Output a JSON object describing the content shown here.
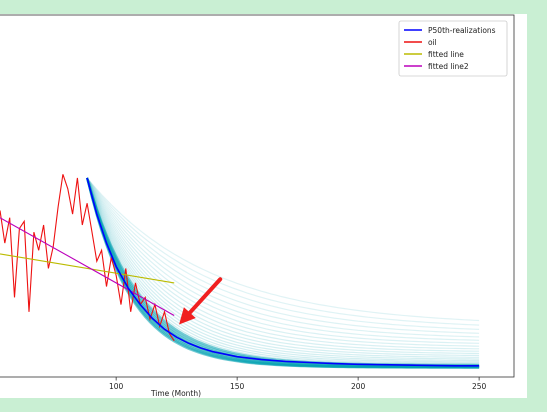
{
  "chart_data": {
    "type": "line",
    "xlabel": "Time (Month)",
    "ylabel": "",
    "xlim": [
      52,
      264
    ],
    "ylim": [
      0,
      1
    ],
    "x_ticks": [
      100,
      150,
      200,
      250
    ],
    "grid": false,
    "legend_position": "top-right",
    "series": [
      {
        "name": "P50th-realizations",
        "color": "#0000ff",
        "x": [
          88,
          92,
          96,
          100,
          105,
          110,
          115,
          120,
          125,
          130,
          135,
          140,
          150,
          160,
          170,
          180,
          190,
          200,
          210,
          220,
          230,
          240,
          250
        ],
        "y": [
          0.55,
          0.45,
          0.37,
          0.305,
          0.245,
          0.2,
          0.162,
          0.132,
          0.11,
          0.093,
          0.08,
          0.07,
          0.056,
          0.048,
          0.043,
          0.04,
          0.037,
          0.035,
          0.034,
          0.033,
          0.032,
          0.031,
          0.031
        ]
      },
      {
        "name": "oil",
        "color": "#ee1111",
        "x": [
          52,
          54,
          56,
          58,
          60,
          62,
          64,
          66,
          68,
          70,
          72,
          74,
          76,
          78,
          80,
          82,
          84,
          86,
          88,
          90,
          92,
          94,
          96,
          98,
          100,
          102,
          104,
          106,
          108,
          110,
          112,
          114,
          116,
          118,
          120,
          122,
          124
        ],
        "y": [
          0.46,
          0.37,
          0.44,
          0.22,
          0.41,
          0.43,
          0.18,
          0.4,
          0.35,
          0.42,
          0.3,
          0.36,
          0.47,
          0.56,
          0.52,
          0.45,
          0.55,
          0.42,
          0.48,
          0.4,
          0.32,
          0.35,
          0.25,
          0.33,
          0.28,
          0.2,
          0.3,
          0.18,
          0.26,
          0.2,
          0.22,
          0.16,
          0.2,
          0.14,
          0.18,
          0.12,
          0.1
        ]
      },
      {
        "name": "fitted line",
        "color": "#bbbb00",
        "x": [
          52,
          124
        ],
        "y": [
          0.34,
          0.26
        ]
      },
      {
        "name": "fitted line2",
        "color": "#bb00bb",
        "x": [
          52,
          124
        ],
        "y": [
          0.44,
          0.17
        ]
      }
    ],
    "realizations_band": {
      "color": "#00a0b0",
      "x_start": 88,
      "x_end": 250,
      "y_start": 0.55,
      "lower_end": 0.026,
      "upper_end": 0.14
    },
    "annotation": {
      "type": "arrow",
      "color": "#f02020",
      "from": [
        143,
        0.27
      ],
      "to": [
        126,
        0.145
      ]
    }
  }
}
